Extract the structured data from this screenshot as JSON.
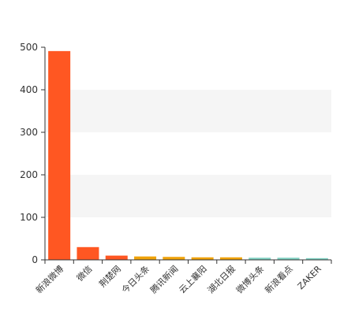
{
  "chart_data": {
    "type": "bar",
    "categories": [
      "新浪微博",
      "微信",
      "荆楚网",
      "今日头条",
      "腾讯新闻",
      "云上襄阳",
      "湖北日报",
      "微博头条",
      "新浪看点",
      "ZAKER"
    ],
    "values": [
      491,
      30,
      10,
      8,
      7,
      6,
      6,
      5,
      5,
      4
    ],
    "bar_colors": [
      "#ff5722",
      "#ff5722",
      "#ff5722",
      "#f0a30a",
      "#f0a30a",
      "#f0a30a",
      "#f0a30a",
      "#7ecfc0",
      "#7ecfc0",
      "#7ecfc0"
    ],
    "y_ticks": [
      "0",
      "100",
      "200",
      "300",
      "400",
      "500"
    ],
    "ylim": [
      0,
      500
    ],
    "grid": "alternating bands",
    "title": "",
    "xlabel": "",
    "ylabel": ""
  }
}
